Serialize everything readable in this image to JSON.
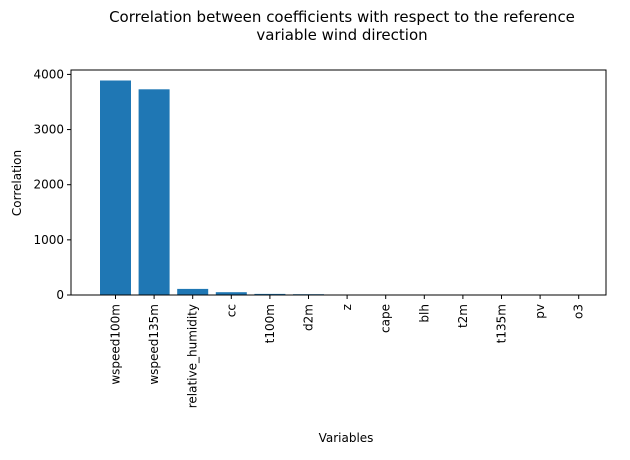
{
  "chart_data": {
    "type": "bar",
    "title_lines": [
      "Correlation between coefficients with respect to the reference",
      "variable wind direction"
    ],
    "xlabel": "Variables",
    "ylabel": "Correlation",
    "categories": [
      "wspeed100m",
      "wspeed135m",
      "relative_humidity",
      "cc",
      "t100m",
      "d2m",
      "z",
      "cape",
      "blh",
      "t2m",
      "t135m",
      "pv",
      "o3"
    ],
    "values": [
      3890,
      3730,
      110,
      50,
      20,
      15,
      5,
      4,
      3,
      2,
      2,
      1,
      1
    ],
    "yticks": [
      0,
      1000,
      2000,
      3000,
      4000
    ],
    "ylim": [
      0,
      4080
    ],
    "bar_color": "#1f77b4",
    "grid": false,
    "legend": "none"
  }
}
